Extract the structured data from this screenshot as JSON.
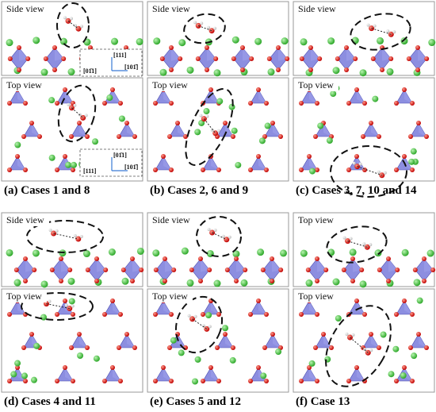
{
  "panels": [
    {
      "side_label": "Side view",
      "top_label": "Top view",
      "caption": "(a) Cases 1 and 8"
    },
    {
      "side_label": "Side view",
      "top_label": "Top view",
      "caption": "(b) Cases 2, 6 and 9"
    },
    {
      "side_label": "Side view",
      "top_label": "Top view",
      "caption": "(c) Cases 3, 7, 10 and 14"
    },
    {
      "side_label": "Side view",
      "top_label": "Top view",
      "caption": "(d) Cases 4 and 11"
    },
    {
      "side_label": "Side view",
      "top_label": "Top view",
      "caption": "(e) Cases 5 and 12"
    },
    {
      "side_label": "Top view",
      "top_label": "Top view",
      "caption": "(f) Case 13"
    }
  ],
  "insets": {
    "side": {
      "up": "[111]",
      "left": "[01̄1]",
      "right": "[101̄]"
    },
    "top": {
      "up": "[01̄1]",
      "left": "[111]",
      "right": "[101̄]"
    }
  }
}
